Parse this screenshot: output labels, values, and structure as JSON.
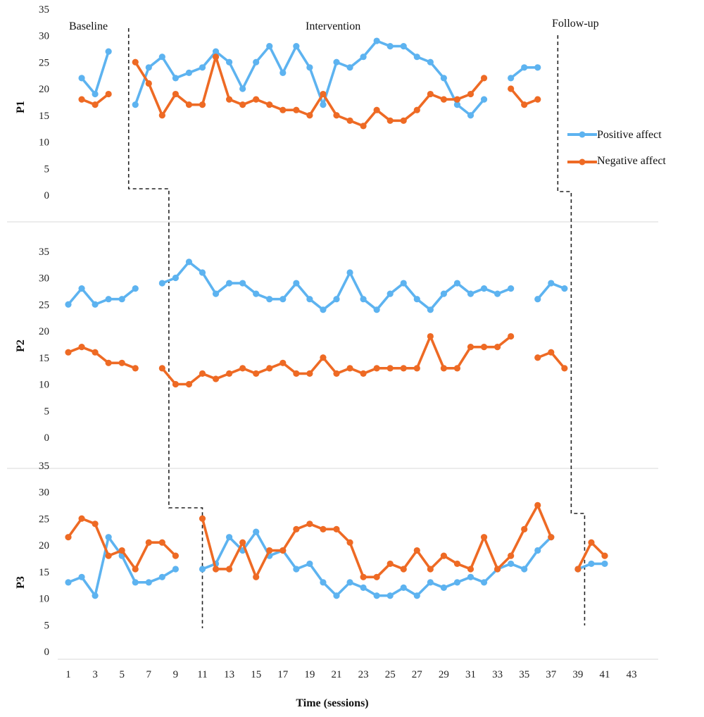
{
  "chart_data": {
    "type": "line",
    "xlabel": "Time (sessions)",
    "x_ticks": [
      1,
      3,
      5,
      7,
      9,
      11,
      13,
      15,
      17,
      19,
      21,
      23,
      25,
      27,
      29,
      31,
      33,
      35,
      37,
      39,
      41,
      43
    ],
    "y_ticks": [
      0,
      5,
      10,
      15,
      20,
      25,
      30,
      35
    ],
    "ylim": [
      0,
      35
    ],
    "xlim": [
      1,
      43
    ],
    "phases": [
      "Baseline",
      "Intervention",
      "Follow-up"
    ],
    "legend": {
      "placement": "right of panel P1",
      "entries": [
        {
          "label": "Positive affect",
          "color": "#5DB3F0"
        },
        {
          "label": "Negative affect",
          "color": "#EE6A24"
        }
      ]
    },
    "panels": [
      {
        "label": "P1",
        "phase_change_sessions": [
          5.5,
          37.5
        ],
        "series": [
          {
            "name": "Positive affect",
            "color": "#5DB3F0",
            "points": [
              [
                2,
                22
              ],
              [
                3,
                19
              ],
              [
                4,
                27
              ],
              [
                6,
                17
              ],
              [
                7,
                24
              ],
              [
                8,
                26
              ],
              [
                9,
                22
              ],
              [
                10,
                23
              ],
              [
                11,
                24
              ],
              [
                12,
                27
              ],
              [
                13,
                25
              ],
              [
                14,
                20
              ],
              [
                15,
                25
              ],
              [
                16,
                28
              ],
              [
                17,
                23
              ],
              [
                18,
                28
              ],
              [
                19,
                24
              ],
              [
                20,
                17
              ],
              [
                21,
                25
              ],
              [
                22,
                24
              ],
              [
                23,
                26
              ],
              [
                24,
                29
              ],
              [
                25,
                28
              ],
              [
                26,
                28
              ],
              [
                27,
                26
              ],
              [
                28,
                25
              ],
              [
                29,
                22
              ],
              [
                30,
                17
              ],
              [
                31,
                15
              ],
              [
                32,
                18
              ],
              [
                34,
                22
              ],
              [
                35,
                24
              ],
              [
                36,
                24
              ]
            ],
            "breaks_after": [
              4,
              32
            ]
          },
          {
            "name": "Negative affect",
            "color": "#EE6A24",
            "points": [
              [
                2,
                18
              ],
              [
                3,
                17
              ],
              [
                4,
                19
              ],
              [
                6,
                25
              ],
              [
                7,
                21
              ],
              [
                8,
                15
              ],
              [
                9,
                19
              ],
              [
                10,
                17
              ],
              [
                11,
                17
              ],
              [
                12,
                26
              ],
              [
                13,
                18
              ],
              [
                14,
                17
              ],
              [
                15,
                18
              ],
              [
                16,
                17
              ],
              [
                17,
                16
              ],
              [
                18,
                16
              ],
              [
                19,
                15
              ],
              [
                20,
                19
              ],
              [
                21,
                15
              ],
              [
                22,
                14
              ],
              [
                23,
                13
              ],
              [
                24,
                16
              ],
              [
                25,
                14
              ],
              [
                26,
                14
              ],
              [
                27,
                16
              ],
              [
                28,
                19
              ],
              [
                29,
                18
              ],
              [
                30,
                18
              ],
              [
                31,
                19
              ],
              [
                32,
                22
              ],
              [
                34,
                20
              ],
              [
                35,
                17
              ],
              [
                36,
                18
              ]
            ],
            "breaks_after": [
              4,
              32
            ]
          }
        ]
      },
      {
        "label": "P2",
        "phase_change_sessions": [
          8.5,
          38.5
        ],
        "series": [
          {
            "name": "Positive affect",
            "color": "#5DB3F0",
            "points": [
              [
                1,
                25
              ],
              [
                2,
                28
              ],
              [
                3,
                25
              ],
              [
                4,
                26
              ],
              [
                5,
                26
              ],
              [
                6,
                28
              ],
              [
                8,
                29
              ],
              [
                9,
                30
              ],
              [
                10,
                33
              ],
              [
                11,
                31
              ],
              [
                12,
                27
              ],
              [
                13,
                29
              ],
              [
                14,
                29
              ],
              [
                15,
                27
              ],
              [
                16,
                26
              ],
              [
                17,
                26
              ],
              [
                18,
                29
              ],
              [
                19,
                26
              ],
              [
                20,
                24
              ],
              [
                21,
                26
              ],
              [
                22,
                31
              ],
              [
                23,
                26
              ],
              [
                24,
                24
              ],
              [
                25,
                27
              ],
              [
                26,
                29
              ],
              [
                27,
                26
              ],
              [
                28,
                24
              ],
              [
                29,
                27
              ],
              [
                30,
                29
              ],
              [
                31,
                27
              ],
              [
                32,
                28
              ],
              [
                33,
                27
              ],
              [
                34,
                28
              ],
              [
                36,
                26
              ],
              [
                37,
                29
              ],
              [
                38,
                28
              ]
            ],
            "breaks_after": [
              6,
              34
            ]
          },
          {
            "name": "Negative affect",
            "color": "#EE6A24",
            "points": [
              [
                1,
                16
              ],
              [
                2,
                17
              ],
              [
                3,
                16
              ],
              [
                4,
                14
              ],
              [
                5,
                14
              ],
              [
                6,
                13
              ],
              [
                8,
                13
              ],
              [
                9,
                10
              ],
              [
                10,
                10
              ],
              [
                11,
                12
              ],
              [
                12,
                11
              ],
              [
                13,
                12
              ],
              [
                14,
                13
              ],
              [
                15,
                12
              ],
              [
                16,
                13
              ],
              [
                17,
                14
              ],
              [
                18,
                12
              ],
              [
                19,
                12
              ],
              [
                20,
                15
              ],
              [
                21,
                12
              ],
              [
                22,
                13
              ],
              [
                23,
                12
              ],
              [
                24,
                13
              ],
              [
                25,
                13
              ],
              [
                26,
                13
              ],
              [
                27,
                13
              ],
              [
                28,
                19
              ],
              [
                29,
                13
              ],
              [
                30,
                13
              ],
              [
                31,
                17
              ],
              [
                32,
                17
              ],
              [
                33,
                17
              ],
              [
                34,
                19
              ],
              [
                36,
                15
              ],
              [
                37,
                16
              ],
              [
                38,
                13
              ]
            ],
            "breaks_after": [
              6,
              34
            ]
          }
        ]
      },
      {
        "label": "P3",
        "phase_change_sessions": [
          11,
          39.5
        ],
        "series": [
          {
            "name": "Positive affect",
            "color": "#5DB3F0",
            "points": [
              [
                1,
                13
              ],
              [
                2,
                14
              ],
              [
                3,
                10.5
              ],
              [
                4,
                21.5
              ],
              [
                5,
                18
              ],
              [
                6,
                13
              ],
              [
                7,
                13
              ],
              [
                8,
                14
              ],
              [
                9,
                15.5
              ],
              [
                11,
                15.5
              ],
              [
                12,
                16.5
              ],
              [
                13,
                21.5
              ],
              [
                14,
                19
              ],
              [
                15,
                22.5
              ],
              [
                16,
                18
              ],
              [
                17,
                19
              ],
              [
                18,
                15.5
              ],
              [
                19,
                16.5
              ],
              [
                20,
                13
              ],
              [
                21,
                10.5
              ],
              [
                22,
                13
              ],
              [
                23,
                12
              ],
              [
                24,
                10.5
              ],
              [
                25,
                10.5
              ],
              [
                26,
                12
              ],
              [
                27,
                10.5
              ],
              [
                28,
                13
              ],
              [
                29,
                12
              ],
              [
                30,
                13
              ],
              [
                31,
                14
              ],
              [
                32,
                13
              ],
              [
                33,
                15.5
              ],
              [
                34,
                16.5
              ],
              [
                35,
                15.5
              ],
              [
                36,
                19
              ],
              [
                37,
                21.5
              ],
              [
                39,
                15.5
              ],
              [
                40,
                16.5
              ],
              [
                41,
                16.5
              ]
            ],
            "breaks_after": [
              9,
              37
            ]
          },
          {
            "name": "Negative affect",
            "color": "#EE6A24",
            "points": [
              [
                1,
                21.5
              ],
              [
                2,
                25
              ],
              [
                3,
                24
              ],
              [
                4,
                18
              ],
              [
                5,
                19
              ],
              [
                6,
                15.5
              ],
              [
                7,
                20.5
              ],
              [
                8,
                20.5
              ],
              [
                9,
                18
              ],
              [
                11,
                25
              ],
              [
                12,
                15.5
              ],
              [
                13,
                15.5
              ],
              [
                14,
                20.5
              ],
              [
                15,
                14
              ],
              [
                16,
                19
              ],
              [
                17,
                19
              ],
              [
                18,
                23
              ],
              [
                19,
                24
              ],
              [
                20,
                23
              ],
              [
                21,
                23
              ],
              [
                22,
                20.5
              ],
              [
                23,
                14
              ],
              [
                24,
                14
              ],
              [
                25,
                16.5
              ],
              [
                26,
                15.5
              ],
              [
                27,
                19
              ],
              [
                28,
                15.5
              ],
              [
                29,
                18
              ],
              [
                30,
                16.5
              ],
              [
                31,
                15.5
              ],
              [
                32,
                21.5
              ],
              [
                33,
                15.5
              ],
              [
                34,
                18
              ],
              [
                35,
                23
              ],
              [
                36,
                27.5
              ],
              [
                37,
                21.5
              ],
              [
                39,
                15.5
              ],
              [
                40,
                20.5
              ],
              [
                41,
                18
              ]
            ],
            "breaks_after": [
              9,
              37
            ]
          }
        ]
      }
    ]
  }
}
